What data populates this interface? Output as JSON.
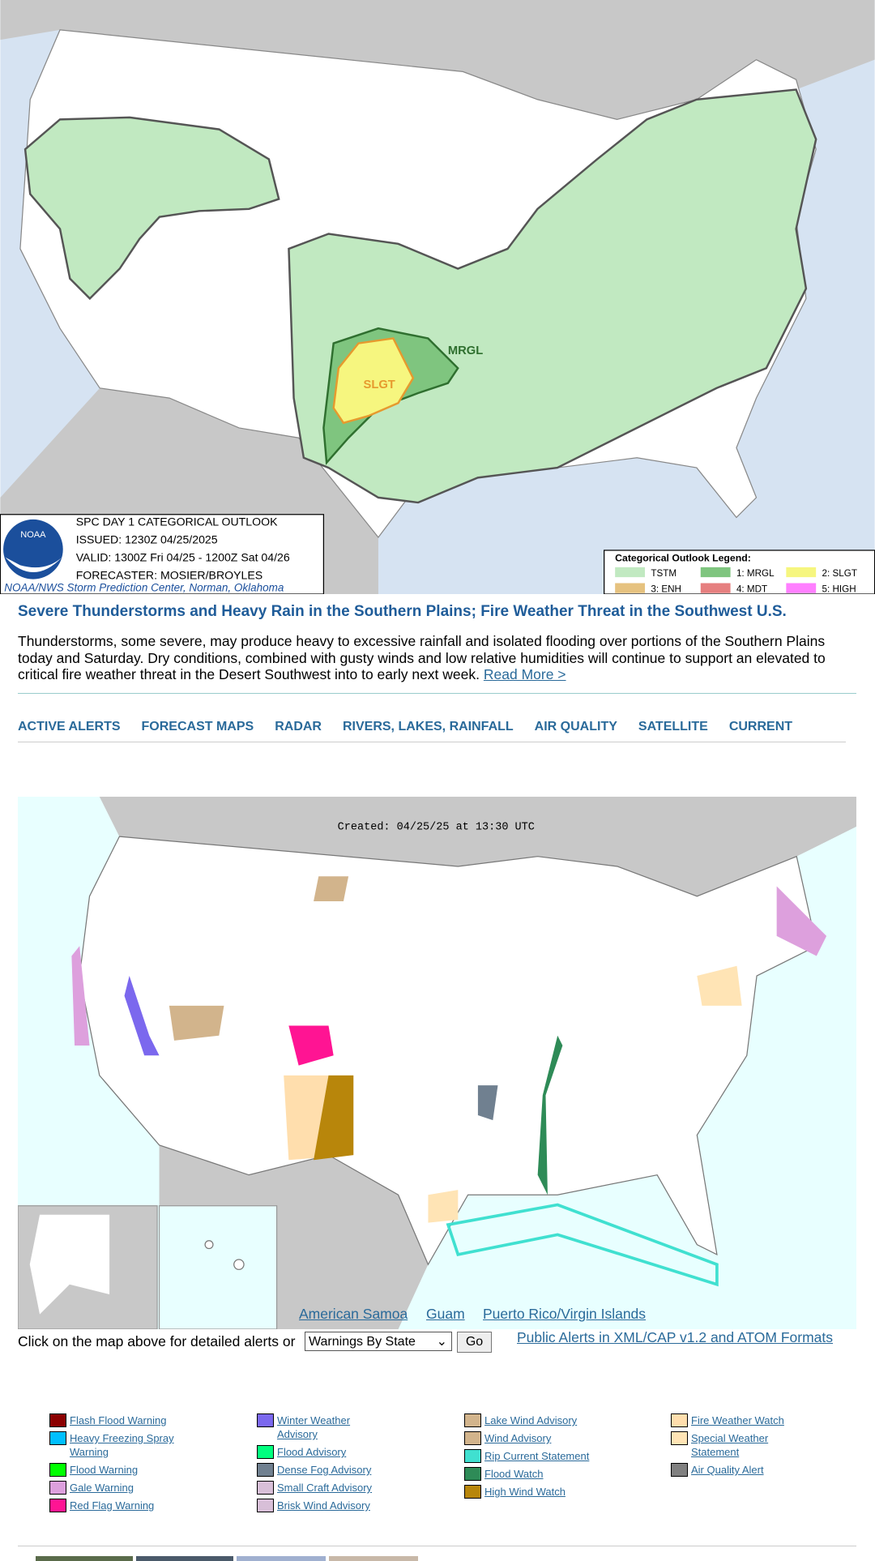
{
  "outlook_map": {
    "logo": "NOAA",
    "title": "SPC DAY 1 CATEGORICAL OUTLOOK",
    "issued": "ISSUED: 1230Z 04/25/2025",
    "valid": "VALID: 1300Z Fri 04/25 - 1200Z Sat 04/26",
    "forecaster": "FORECASTER: MOSIER/BROYLES",
    "credit": "NOAA/NWS Storm Prediction Center, Norman, Oklahoma",
    "labels": [
      "MRGL",
      "SLGT"
    ],
    "legend": {
      "title": "Categorical Outlook Legend:",
      "items": [
        {
          "label": "TSTM",
          "color": "#c1e9c1"
        },
        {
          "label": "1: MRGL",
          "color": "#7fc57f"
        },
        {
          "label": "2: SLGT",
          "color": "#f6f67f"
        },
        {
          "label": "3: ENH",
          "color": "#e6c27f"
        },
        {
          "label": "4: MDT",
          "color": "#e67f7f"
        },
        {
          "label": "5: HIGH",
          "color": "#ff7fff"
        }
      ]
    }
  },
  "headline": "Severe Thunderstorms and Heavy Rain in the Southern Plains; Fire Weather Threat in the Southwest U.S.",
  "summary": "Thunderstorms, some severe, may produce heavy to excessive rainfall and isolated flooding over portions of the Southern Plains today and Saturday. Dry conditions, combined with gusty winds and low relative humidities will continue to support an elevated to critical fire weather threat in the Desert Southwest into to early next week.",
  "read_more": "Read More >",
  "nav": [
    "ACTIVE ALERTS",
    "FORECAST MAPS",
    "RADAR",
    "RIVERS, LAKES, RAINFALL",
    "AIR QUALITY",
    "SATELLITE",
    "CURRENT"
  ],
  "alerts_map": {
    "created": "Created: 04/25/25 at 13:30 UTC",
    "links": [
      "American Samoa",
      "Guam",
      "Puerto Rico/Virgin Islands"
    ]
  },
  "form": {
    "prompt": "Click on the map above for detailed alerts or",
    "select": "Warnings By State",
    "button": "Go",
    "cap_link": "Public Alerts in XML/CAP v1.2 and ATOM Formats"
  },
  "legend": {
    "columns": [
      [
        {
          "label": "Flash Flood Warning",
          "color": "#8b0000"
        },
        {
          "label": "Heavy Freezing Spray Warning",
          "color": "#00bfff"
        },
        {
          "label": "Flood Warning",
          "color": "#00ff00"
        },
        {
          "label": "Gale Warning",
          "color": "#dda0dd"
        },
        {
          "label": "Red Flag Warning",
          "color": "#ff1493"
        }
      ],
      [
        {
          "label": "Winter Weather Advisory",
          "color": "#7b68ee"
        },
        {
          "label": "Flood Advisory",
          "color": "#00ff7f"
        },
        {
          "label": "Dense Fog Advisory",
          "color": "#708090"
        },
        {
          "label": "Small Craft Advisory",
          "color": "#d8bfd8"
        },
        {
          "label": "Brisk Wind Advisory",
          "color": "#d8bfd8"
        }
      ],
      [
        {
          "label": "Lake Wind Advisory",
          "color": "#d2b48c"
        },
        {
          "label": "Wind Advisory",
          "color": "#d2b48c"
        },
        {
          "label": "Rip Current Statement",
          "color": "#40e0d0"
        },
        {
          "label": "Flood Watch",
          "color": "#2e8b57"
        },
        {
          "label": "High Wind Watch",
          "color": "#b8860b"
        }
      ],
      [
        {
          "label": "Fire Weather Watch",
          "color": "#ffdead"
        },
        {
          "label": "Special Weather Statement",
          "color": "#ffe4b5"
        },
        {
          "label": "Air Quality Alert",
          "color": "#808080"
        }
      ]
    ]
  }
}
